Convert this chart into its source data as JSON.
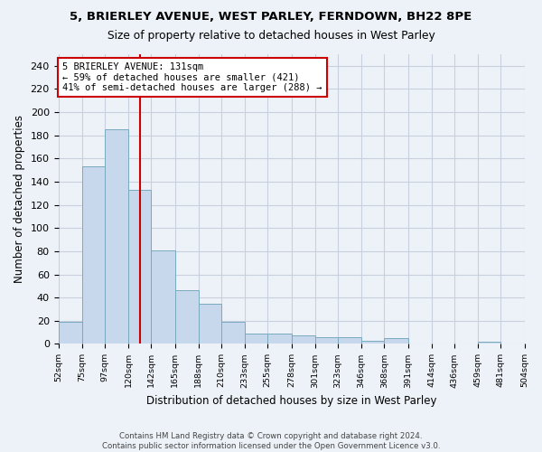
{
  "title1": "5, BRIERLEY AVENUE, WEST PARLEY, FERNDOWN, BH22 8PE",
  "title2": "Size of property relative to detached houses in West Parley",
  "xlabel": "Distribution of detached houses by size in West Parley",
  "ylabel": "Number of detached properties",
  "bar_values": [
    19,
    153,
    185,
    133,
    81,
    46,
    35,
    19,
    9,
    9,
    7,
    6,
    6,
    3,
    5,
    0,
    0,
    0,
    2,
    0
  ],
  "bin_edges": [
    52,
    75,
    97,
    120,
    142,
    165,
    188,
    210,
    233,
    255,
    278,
    301,
    323,
    346,
    368,
    391,
    414,
    436,
    459,
    481,
    504
  ],
  "bin_tick_labels": [
    "52sqm",
    "75sqm",
    "97sqm",
    "120sqm",
    "142sqm",
    "165sqm",
    "188sqm",
    "210sqm",
    "233sqm",
    "255sqm",
    "278sqm",
    "301sqm",
    "323sqm",
    "346sqm",
    "368sqm",
    "391sqm",
    "414sqm",
    "436sqm",
    "459sqm",
    "481sqm",
    "504sqm"
  ],
  "bar_color": "#c8d8ec",
  "bar_edge_color": "#7aaabf",
  "grid_color": "#c8d0df",
  "bg_color": "#edf2f8",
  "vline_x": 131,
  "vline_color": "#cc0000",
  "annotation_line1": "5 BRIERLEY AVENUE: 131sqm",
  "annotation_line2": "← 59% of detached houses are smaller (421)",
  "annotation_line3": "41% of semi-detached houses are larger (288) →",
  "annotation_box_color": "#ffffff",
  "annotation_box_edge": "#cc0000",
  "ylim": [
    0,
    250
  ],
  "yticks": [
    0,
    20,
    40,
    60,
    80,
    100,
    120,
    140,
    160,
    180,
    200,
    220,
    240
  ],
  "footnote1": "Contains HM Land Registry data © Crown copyright and database right 2024.",
  "footnote2": "Contains public sector information licensed under the Open Government Licence v3.0."
}
